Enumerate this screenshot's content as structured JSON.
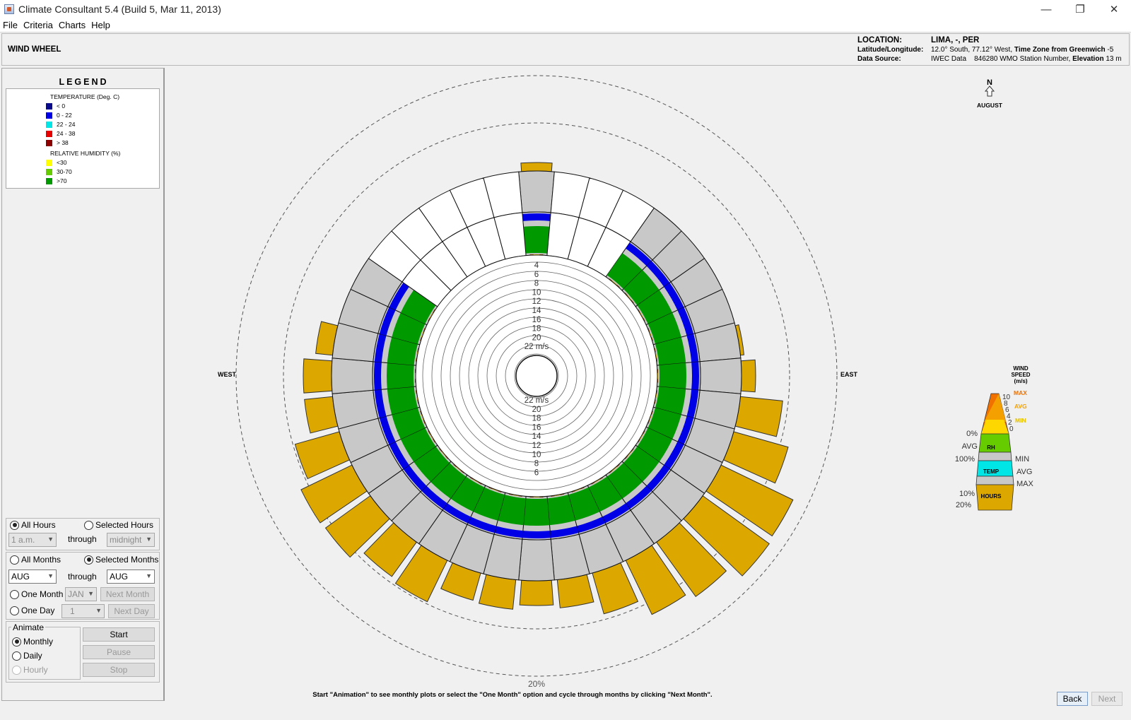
{
  "window": {
    "title": "Climate Consultant 5.4 (Build 5, Mar 11, 2013)"
  },
  "menu": [
    "File",
    "Criteria",
    "Charts",
    "Help"
  ],
  "header": {
    "chart_name": "WIND WHEEL",
    "location_label": "LOCATION:",
    "location_value": "LIMA, -, PER",
    "latlon_label": "Latitude/Longitude:",
    "latlon_value": "12.0° South, 77.12° West,",
    "tz_label": "Time Zone from Greenwich",
    "tz_value": "-5",
    "source_label": "Data Source:",
    "source_value": "IWEC Data    846280 WMO Station Number,",
    "elev_label": "Elevation",
    "elev_value": "13 m"
  },
  "legend": {
    "title": "LEGEND",
    "temp_head": "TEMPERATURE (Deg. C)",
    "temp_items": [
      {
        "label": "< 0",
        "color": "#0a0a8c"
      },
      {
        "label": "0  -  22",
        "color": "#0000e6"
      },
      {
        "label": "22  -  24",
        "color": "#00e6e6"
      },
      {
        "label": "24  -  38",
        "color": "#e60000"
      },
      {
        "label": "> 38",
        "color": "#8c0000"
      }
    ],
    "rh_head": "RELATIVE HUMIDITY (%)",
    "rh_items": [
      {
        "label": "<30",
        "color": "#ffff00"
      },
      {
        "label": "30-70",
        "color": "#66cc00"
      },
      {
        "label": ">70",
        "color": "#009900"
      }
    ]
  },
  "controls": {
    "all_hours": "All Hours",
    "selected_hours": "Selected Hours",
    "hour_from": "1 a.m.",
    "through": "through",
    "hour_to": "midnight",
    "all_months": "All Months",
    "selected_months": "Selected Months",
    "month_from": "AUG",
    "month_to": "AUG",
    "one_month": "One Month",
    "one_month_value": "JAN",
    "next_month": "Next Month",
    "one_day": "One Day",
    "one_day_value": "1",
    "next_day": "Next Day",
    "animate": "Animate",
    "monthly": "Monthly",
    "daily": "Daily",
    "hourly": "Hourly",
    "start": "Start",
    "pause": "Pause",
    "stop": "Stop"
  },
  "chart": {
    "north": "N",
    "month": "AUGUST",
    "west": "WEST",
    "east": "EAST",
    "pct_bottom": "20%",
    "speed_labels_top": [
      "4",
      "6",
      "8",
      "10",
      "12",
      "14",
      "16",
      "18",
      "20",
      "22 m/s"
    ],
    "speed_labels_bottom": [
      "22 m/s",
      "20",
      "18",
      "16",
      "14",
      "12",
      "10",
      "8",
      "6"
    ],
    "key": {
      "title_lines": [
        "WIND",
        "SPEED",
        "(m/s)"
      ],
      "max": "MAX",
      "avg": "AVG",
      "min": "MIN",
      "ticks": [
        "10",
        "8",
        "6",
        "4",
        "2",
        "0"
      ],
      "pct0": "0%",
      "rh_avg": "AVG",
      "pct100": "100%",
      "rh": "RH",
      "temp": "TEMP",
      "hours": "HOURS",
      "t_min": "MIN",
      "t_avg": "AVG",
      "t_max": "MAX",
      "pct10": "10%",
      "pct20": "20%"
    },
    "colors": {
      "hours": "#dca800",
      "grey": "#c8c8c8",
      "temp_blue": "#0000e6",
      "rh_green": "#009900",
      "orange": "#f07000",
      "orange_light": "#f4a000",
      "yellow": "#ffd700"
    }
  },
  "status_text": "Start \"Animation\" to see monthly plots or select the \"One Month\" option and cycle through months by clicking \"Next Month\".",
  "nav": {
    "back": "Back",
    "next": "Next"
  }
}
